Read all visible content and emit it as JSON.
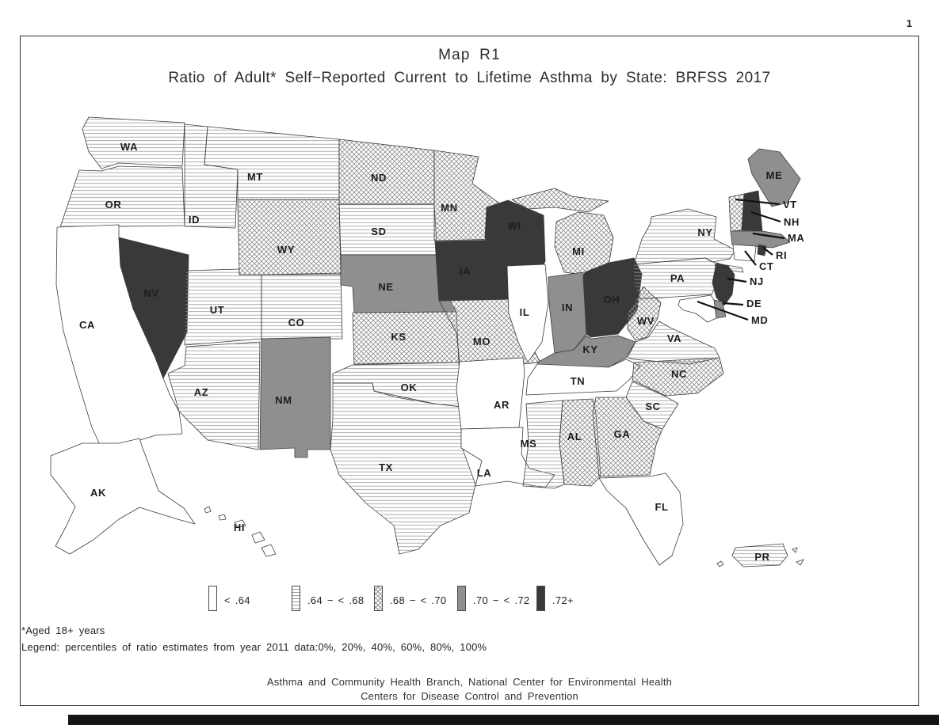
{
  "page": {
    "number": "1"
  },
  "title": {
    "line1": "Map R1",
    "line2": "Ratio of Adult* Self−Reported Current to Lifetime Asthma by State: BRFSS 2017"
  },
  "legend": {
    "items": [
      {
        "category": "cat1",
        "label": "< .64"
      },
      {
        "category": "cat2",
        "label": ".64 − < .68"
      },
      {
        "category": "cat3",
        "label": ".68 − < .70"
      },
      {
        "category": "cat4",
        "label": ".70 − < .72"
      },
      {
        "category": "cat5",
        "label": ".72+"
      }
    ]
  },
  "footnotes": [
    "*Aged 18+  years",
    "Legend:  percentiles  of  ratio  estimates  from  year  2011  data:0%,  20%,  40%,  60%,  80%,  100%"
  ],
  "footer": [
    "Asthma and Community Health Branch, National Center for Environmental Health",
    "Centers for Disease Control and Prevention"
  ],
  "colors": {
    "gray_fill": "#8f8f8f",
    "dark_fill": "#39393b",
    "pattern_stroke": "#999999",
    "state_border": "#3c3c3c",
    "leader_line": "#111111"
  },
  "map": {
    "states": [
      {
        "id": "WA",
        "category": "cat2"
      },
      {
        "id": "OR",
        "category": "cat2"
      },
      {
        "id": "CA",
        "category": "cat1"
      },
      {
        "id": "NV",
        "category": "cat5"
      },
      {
        "id": "ID",
        "category": "cat2"
      },
      {
        "id": "MT",
        "category": "cat2"
      },
      {
        "id": "WY",
        "category": "cat3"
      },
      {
        "id": "UT",
        "category": "cat2"
      },
      {
        "id": "CO",
        "category": "cat2"
      },
      {
        "id": "AZ",
        "category": "cat2"
      },
      {
        "id": "NM",
        "category": "cat4"
      },
      {
        "id": "ND",
        "category": "cat3"
      },
      {
        "id": "SD",
        "category": "cat2"
      },
      {
        "id": "NE",
        "category": "cat4"
      },
      {
        "id": "KS",
        "category": "cat3"
      },
      {
        "id": "OK",
        "category": "cat2"
      },
      {
        "id": "TX",
        "category": "cat2"
      },
      {
        "id": "MN",
        "category": "cat3"
      },
      {
        "id": "IA",
        "category": "cat5"
      },
      {
        "id": "MO",
        "category": "cat3"
      },
      {
        "id": "AR",
        "category": "cat1"
      },
      {
        "id": "LA",
        "category": "cat1"
      },
      {
        "id": "WI",
        "category": "cat5"
      },
      {
        "id": "MI",
        "category": "cat3"
      },
      {
        "id": "IL",
        "category": "cat1"
      },
      {
        "id": "IN",
        "category": "cat4"
      },
      {
        "id": "OH",
        "category": "cat5"
      },
      {
        "id": "KY",
        "category": "cat4"
      },
      {
        "id": "TN",
        "category": "cat1"
      },
      {
        "id": "MS",
        "category": "cat2"
      },
      {
        "id": "AL",
        "category": "cat3"
      },
      {
        "id": "GA",
        "category": "cat3"
      },
      {
        "id": "FL",
        "category": "cat1"
      },
      {
        "id": "SC",
        "category": "cat2"
      },
      {
        "id": "NC",
        "category": "cat3"
      },
      {
        "id": "VA",
        "category": "cat2"
      },
      {
        "id": "WV",
        "category": "cat3"
      },
      {
        "id": "PA",
        "category": "cat2"
      },
      {
        "id": "NY",
        "category": "cat2"
      },
      {
        "id": "NJ",
        "category": "cat5"
      },
      {
        "id": "DE",
        "category": "cat4"
      },
      {
        "id": "MD",
        "category": "cat1"
      },
      {
        "id": "VT",
        "category": "cat3"
      },
      {
        "id": "NH",
        "category": "cat5"
      },
      {
        "id": "ME",
        "category": "cat4"
      },
      {
        "id": "MA",
        "category": "cat4"
      },
      {
        "id": "RI",
        "category": "cat5"
      },
      {
        "id": "CT",
        "category": "cat1"
      },
      {
        "id": "AK",
        "category": "cat1"
      },
      {
        "id": "HI",
        "category": "cat1"
      },
      {
        "id": "PR",
        "category": "cat2"
      }
    ]
  },
  "chart_data": {
    "type": "heatmap",
    "title": "Map R1 — Ratio of Adult* Self−Reported Current to Lifetime Asthma by State: BRFSS 2017",
    "bins": [
      "< .64",
      ".64 − < .68",
      ".68 − < .70",
      ".70 − < .72",
      ".72+"
    ],
    "legend_note": "percentiles of ratio estimates from year 2011 data: 0%, 20%, 40%, 60%, 80%, 100%",
    "state_bins": {
      "WA": ".64 − < .68",
      "OR": ".64 − < .68",
      "CA": "< .64",
      "NV": ".72+",
      "ID": ".64 − < .68",
      "MT": ".64 − < .68",
      "WY": ".68 − < .70",
      "UT": ".64 − < .68",
      "CO": ".64 − < .68",
      "AZ": ".64 − < .68",
      "NM": ".70 − < .72",
      "ND": ".68 − < .70",
      "SD": ".64 − < .68",
      "NE": ".70 − < .72",
      "KS": ".68 − < .70",
      "OK": ".64 − < .68",
      "TX": ".64 − < .68",
      "MN": ".68 − < .70",
      "IA": ".72+",
      "MO": ".68 − < .70",
      "AR": "< .64",
      "LA": "< .64",
      "WI": ".72+",
      "MI": ".68 − < .70",
      "IL": "< .64",
      "IN": ".70 − < .72",
      "OH": ".72+",
      "KY": ".70 − < .72",
      "TN": "< .64",
      "MS": ".64 − < .68",
      "AL": ".68 − < .70",
      "GA": ".68 − < .70",
      "FL": "< .64",
      "SC": ".64 − < .68",
      "NC": ".68 − < .70",
      "VA": ".64 − < .68",
      "WV": ".68 − < .70",
      "PA": ".64 − < .68",
      "NY": ".64 − < .68",
      "NJ": ".72+",
      "DE": ".70 − < .72",
      "MD": "< .64",
      "VT": ".68 − < .70",
      "NH": ".72+",
      "ME": ".70 − < .72",
      "MA": ".70 − < .72",
      "RI": ".72+",
      "CT": "< .64",
      "AK": "< .64",
      "HI": "< .64",
      "PR": ".64 − < .68"
    }
  }
}
